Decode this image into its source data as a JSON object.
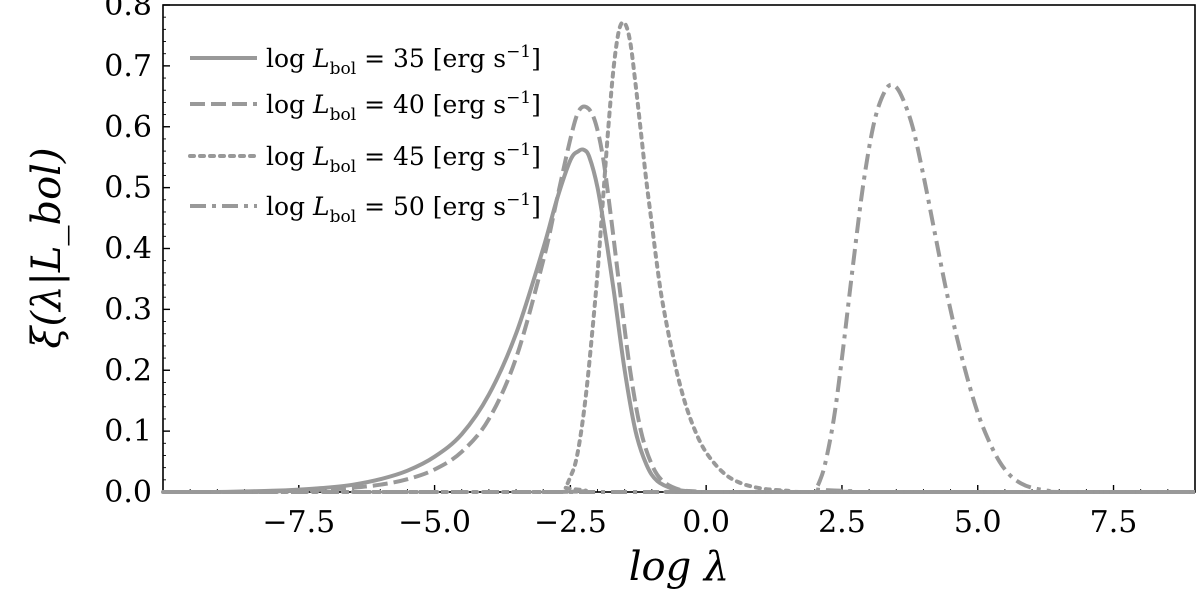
{
  "chart_data": {
    "type": "line",
    "xlabel": "log λ",
    "ylabel": "ξ(λ|L_bol)",
    "xlim": [
      -10.0,
      9.0
    ],
    "ylim": [
      0.0,
      0.8
    ],
    "xticks": [
      -7.5,
      -5.0,
      -2.5,
      0.0,
      2.5,
      5.0,
      7.5
    ],
    "xtick_labels": [
      "−7.5",
      "−5.0",
      "−2.5",
      "0.0",
      "2.5",
      "5.0",
      "7.5"
    ],
    "yticks": [
      0.0,
      0.1,
      0.2,
      0.3,
      0.4,
      0.5,
      0.6,
      0.7,
      0.8
    ],
    "ytick_labels": [
      "0.0",
      "0.1",
      "0.2",
      "0.3",
      "0.4",
      "0.5",
      "0.6",
      "0.7",
      "0.8"
    ],
    "line_color": "#999999",
    "legend_position": "top-left",
    "series": [
      {
        "name": "log L_bol = 35 [erg s^-1]",
        "label_prefix": "log ",
        "label_var": "L",
        "label_sub": "bol",
        "label_value": " = 35 [erg s",
        "label_exp": "−1",
        "label_end": "]",
        "style": "solid",
        "x": [
          -10.0,
          -9.0,
          -8.5,
          -8.0,
          -7.5,
          -7.0,
          -6.5,
          -6.0,
          -5.5,
          -5.0,
          -4.5,
          -4.0,
          -3.5,
          -3.0,
          -2.75,
          -2.5,
          -2.35,
          -2.25,
          -2.15,
          -2.0,
          -1.85,
          -1.7,
          -1.5,
          -1.3,
          -1.1,
          -0.9,
          -0.6,
          -0.3,
          0.0,
          9.0
        ],
        "y": [
          0.0,
          0.0,
          0.001,
          0.002,
          0.004,
          0.007,
          0.012,
          0.021,
          0.035,
          0.058,
          0.095,
          0.16,
          0.26,
          0.4,
          0.48,
          0.545,
          0.56,
          0.562,
          0.55,
          0.5,
          0.42,
          0.33,
          0.2,
          0.1,
          0.045,
          0.018,
          0.005,
          0.001,
          0.0,
          0.0
        ]
      },
      {
        "name": "log L_bol = 40 [erg s^-1]",
        "label_prefix": "log ",
        "label_var": "L",
        "label_sub": "bol",
        "label_value": " = 40 [erg s",
        "label_exp": "−1",
        "label_end": "]",
        "style": "dashed",
        "x": [
          -10.0,
          -8.5,
          -8.0,
          -7.5,
          -7.0,
          -6.5,
          -6.0,
          -5.5,
          -5.0,
          -4.5,
          -4.0,
          -3.5,
          -3.0,
          -2.75,
          -2.5,
          -2.35,
          -2.2,
          -2.05,
          -1.9,
          -1.75,
          -1.6,
          -1.4,
          -1.2,
          -1.0,
          -0.8,
          -0.5,
          -0.2,
          0.0,
          9.0
        ],
        "y": [
          0.0,
          0.0,
          0.001,
          0.002,
          0.004,
          0.007,
          0.012,
          0.021,
          0.037,
          0.066,
          0.12,
          0.22,
          0.38,
          0.48,
          0.58,
          0.625,
          0.632,
          0.61,
          0.55,
          0.45,
          0.34,
          0.2,
          0.1,
          0.045,
          0.018,
          0.004,
          0.001,
          0.0,
          0.0
        ]
      },
      {
        "name": "log L_bol = 45 [erg s^-1]",
        "label_prefix": "log ",
        "label_var": "L",
        "label_sub": "bol",
        "label_value": " = 45 [erg s",
        "label_exp": "−1",
        "label_end": "]",
        "style": "dotted",
        "x": [
          -10.0,
          -2.8,
          -2.6,
          -2.5,
          -2.4,
          -2.3,
          -2.2,
          -2.1,
          -2.0,
          -1.9,
          -1.8,
          -1.7,
          -1.6,
          -1.5,
          -1.4,
          -1.3,
          -1.2,
          -1.1,
          -1.0,
          -0.9,
          -0.8,
          -0.6,
          -0.4,
          -0.2,
          0.0,
          0.3,
          0.6,
          1.0,
          1.5,
          2.0,
          9.0
        ],
        "y": [
          0.0,
          0.0,
          0.008,
          0.025,
          0.05,
          0.1,
          0.17,
          0.26,
          0.36,
          0.48,
          0.6,
          0.7,
          0.76,
          0.77,
          0.74,
          0.67,
          0.59,
          0.51,
          0.44,
          0.37,
          0.31,
          0.22,
          0.15,
          0.1,
          0.065,
          0.033,
          0.016,
          0.006,
          0.002,
          0.0,
          0.0
        ]
      },
      {
        "name": "log L_bol = 50 [erg s^-1]",
        "label_prefix": "log ",
        "label_var": "L",
        "label_sub": "bol",
        "label_value": " = 50 [erg s",
        "label_exp": "−1",
        "label_end": "]",
        "style": "dashdot",
        "x": [
          -10.0,
          1.8,
          2.0,
          2.1,
          2.2,
          2.35,
          2.5,
          2.7,
          2.9,
          3.1,
          3.3,
          3.45,
          3.6,
          3.8,
          4.0,
          4.2,
          4.4,
          4.6,
          4.8,
          5.0,
          5.2,
          5.4,
          5.6,
          5.8,
          6.0,
          6.3,
          6.6,
          9.0
        ],
        "y": [
          0.0,
          0.0,
          0.005,
          0.02,
          0.05,
          0.12,
          0.22,
          0.37,
          0.51,
          0.61,
          0.66,
          0.668,
          0.65,
          0.6,
          0.52,
          0.43,
          0.34,
          0.26,
          0.19,
          0.13,
          0.085,
          0.05,
          0.027,
          0.014,
          0.007,
          0.002,
          0.0,
          0.0
        ]
      }
    ]
  }
}
